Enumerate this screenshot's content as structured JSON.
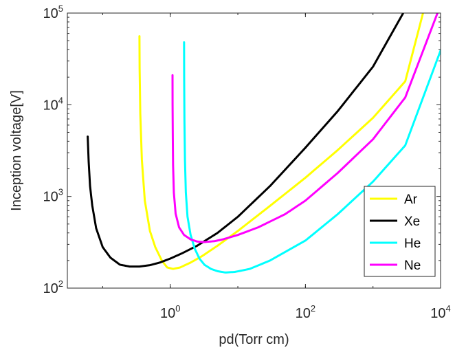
{
  "chart_data": {
    "type": "line",
    "title": "",
    "xlabel": "pd(Torr cm)",
    "ylabel": "Inception voltage[V]",
    "xscale": "log",
    "yscale": "log",
    "xlim": [
      0.03,
      10000
    ],
    "ylim": [
      100,
      100000
    ],
    "xticks": [
      {
        "base": "10",
        "exp": "0",
        "value": 1
      },
      {
        "base": "10",
        "exp": "2",
        "value": 100
      },
      {
        "base": "10",
        "exp": "4",
        "value": 10000
      }
    ],
    "yticks": [
      {
        "base": "10",
        "exp": "2",
        "value": 100
      },
      {
        "base": "10",
        "exp": "3",
        "value": 1000
      },
      {
        "base": "10",
        "exp": "4",
        "value": 10000
      },
      {
        "base": "10",
        "exp": "5",
        "value": 100000
      }
    ],
    "grid": false,
    "legend_position": "bottom-right",
    "series": [
      {
        "name": "Ar",
        "color": "#ffff00",
        "x": [
          0.35,
          0.352,
          0.36,
          0.38,
          0.42,
          0.5,
          0.6,
          0.75,
          0.9,
          1.1,
          1.4,
          2,
          3,
          5,
          10,
          30,
          100,
          300,
          1000,
          3000,
          5500
        ],
        "y": [
          56000,
          25000,
          8000,
          2500,
          900,
          420,
          280,
          200,
          168,
          162,
          168,
          190,
          225,
          290,
          420,
          790,
          1600,
          3200,
          7200,
          18000,
          100000
        ]
      },
      {
        "name": "Xe",
        "color": "#000000",
        "x": [
          0.06,
          0.062,
          0.065,
          0.07,
          0.08,
          0.1,
          0.13,
          0.18,
          0.25,
          0.35,
          0.5,
          0.7,
          1,
          1.5,
          2.5,
          5,
          10,
          30,
          100,
          300,
          1000,
          2800
        ],
        "y": [
          4500,
          2400,
          1300,
          800,
          450,
          280,
          215,
          180,
          172,
          172,
          178,
          190,
          210,
          240,
          290,
          400,
          600,
          1300,
          3400,
          8500,
          26000,
          100000
        ]
      },
      {
        "name": "He",
        "color": "#00ffff",
        "x": [
          1.6,
          1.605,
          1.62,
          1.65,
          1.7,
          1.8,
          2,
          2.3,
          2.7,
          3.2,
          4,
          5,
          6.5,
          9,
          15,
          30,
          100,
          300,
          1000,
          3000,
          10000
        ],
        "y": [
          48000,
          20000,
          7000,
          2500,
          1100,
          600,
          380,
          270,
          210,
          180,
          162,
          153,
          148,
          150,
          162,
          200,
          330,
          640,
          1450,
          3600,
          39000
        ]
      },
      {
        "name": "Ne",
        "color": "#ff00ff",
        "x": [
          1.08,
          1.082,
          1.09,
          1.1,
          1.13,
          1.2,
          1.35,
          1.6,
          2,
          2.5,
          3.2,
          4.5,
          6,
          10,
          20,
          50,
          100,
          300,
          1000,
          3000,
          9000
        ],
        "y": [
          21000,
          10000,
          4500,
          2200,
          1100,
          650,
          460,
          380,
          340,
          322,
          318,
          325,
          340,
          380,
          460,
          640,
          900,
          1800,
          4200,
          12000,
          100000
        ]
      }
    ]
  }
}
